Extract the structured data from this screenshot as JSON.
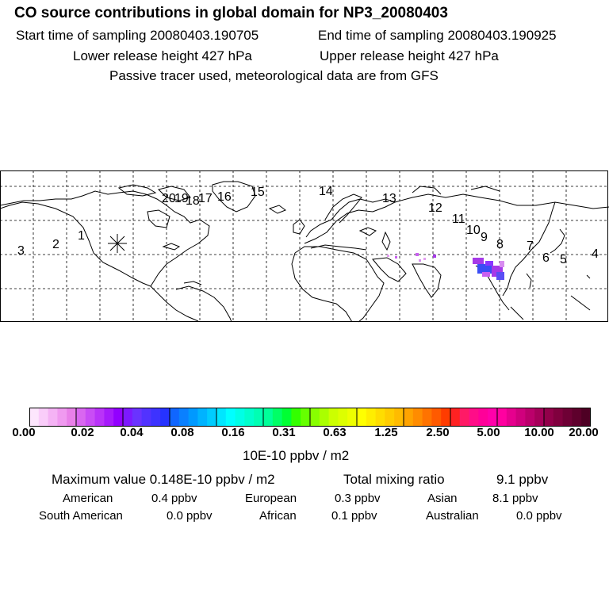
{
  "header": {
    "title": "CO  source contributions in global domain for NP3_20080403",
    "start": "Start time of sampling 20080403.190705",
    "end": "End time of sampling 20080403.190925",
    "lower": "Lower release height  427 hPa",
    "upper": "Upper release height  427 hPa",
    "tracer": "Passive tracer used, meteorological data are from GFS"
  },
  "map": {
    "flight_points": [
      "1",
      "2",
      "3",
      "4",
      "5",
      "6",
      "7",
      "8",
      "9",
      "10",
      "11",
      "12",
      "13",
      "14",
      "15",
      "16",
      "17",
      "18",
      "19",
      "20"
    ],
    "release_marker": "asterisk"
  },
  "colorbar": {
    "ticks": [
      "0.00",
      "0.02",
      "0.04",
      "0.08",
      "0.16",
      "0.31",
      "0.63",
      "1.25",
      "2.50",
      "5.00",
      "10.00",
      "20.00"
    ],
    "units": "10E-10 ppbv / m2",
    "colors": [
      [
        "#fde6fd",
        "#facdfa",
        "#f5b3f5",
        "#f09af0",
        "#e980e9"
      ],
      [
        "#d967f0",
        "#c94df5",
        "#b933f8",
        "#a61afb",
        "#9200ff"
      ],
      [
        "#7d19ff",
        "#6a33ff",
        "#5233ff",
        "#3d33ff",
        "#2633ff"
      ],
      [
        "#1066ff",
        "#0a80ff",
        "#0099ff",
        "#00b3ff",
        "#00ccff"
      ],
      [
        "#00e6ff",
        "#00ffff",
        "#00ffe6",
        "#00ffcc",
        "#00ffb3"
      ],
      [
        "#00ff99",
        "#00ff66",
        "#00ff33",
        "#33ff00",
        "#66ff00"
      ],
      [
        "#88ff00",
        "#aaff00",
        "#ccff00",
        "#ddff00",
        "#eeff00"
      ],
      [
        "#ffff00",
        "#ffee00",
        "#ffdd00",
        "#ffcc00",
        "#ffbb00"
      ],
      [
        "#ffa300",
        "#ff8c00",
        "#ff7300",
        "#ff5a00",
        "#ff3c00"
      ],
      [
        "#ff2222",
        "#ff1a66",
        "#ff0d88",
        "#ff0099",
        "#ff00aa"
      ],
      [
        "#ff00a0",
        "#e6008e",
        "#d0007d",
        "#bb006b",
        "#a6005a"
      ],
      [
        "#92004a",
        "#80003e",
        "#6e0035",
        "#5e002c",
        "#4e0024"
      ]
    ]
  },
  "summary": {
    "max_value": "Maximum value  0.148E-10 ppbv / m2",
    "total_label": "Total mixing ratio",
    "total_value": "9.1 ppbv",
    "regions": [
      {
        "name": "American",
        "value": "0.4 ppbv"
      },
      {
        "name": "European",
        "value": "0.3 ppbv"
      },
      {
        "name": "Asian",
        "value": "8.1 ppbv"
      },
      {
        "name": "South American",
        "value": "0.0 ppbv"
      },
      {
        "name": "African",
        "value": "0.1 ppbv"
      },
      {
        "name": "Australian",
        "value": "0.0 ppbv"
      }
    ]
  }
}
